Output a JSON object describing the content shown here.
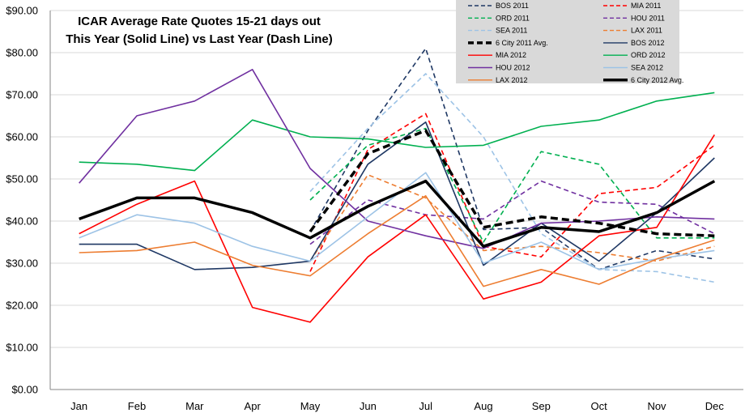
{
  "chart_data": {
    "type": "line",
    "title": "ICAR Average Rate  Quotes 15-21 days out",
    "subtitle": "This Year (Solid Line) vs Last Year (Dash Line)",
    "xlabel": "",
    "ylabel": "",
    "categories": [
      "Jan",
      "Feb",
      "Mar",
      "Apr",
      "May",
      "Jun",
      "Jul",
      "Aug",
      "Sep",
      "Oct",
      "Nov",
      "Dec"
    ],
    "ylim": [
      0,
      90
    ],
    "yticks": [
      "$0.00",
      "$10.00",
      "$20.00",
      "$30.00",
      "$40.00",
      "$50.00",
      "$60.00",
      "$70.00",
      "$80.00",
      "$90.00"
    ],
    "grid": true,
    "legend_position": "top-right",
    "series": [
      {
        "name": "BOS 2011",
        "color": "#1f3864",
        "dash": true,
        "bold": false,
        "values": [
          null,
          null,
          null,
          null,
          37.5,
          61.5,
          81,
          38,
          38.5,
          28.5,
          33,
          31
        ]
      },
      {
        "name": "MIA 2011",
        "color": "#ff0000",
        "dash": true,
        "bold": false,
        "values": [
          null,
          null,
          null,
          null,
          28,
          57,
          65.5,
          34,
          31.5,
          46.5,
          48,
          58
        ]
      },
      {
        "name": "ORD 2011",
        "color": "#00b050",
        "dash": true,
        "bold": false,
        "values": [
          null,
          null,
          null,
          null,
          45,
          58,
          62,
          35,
          56.5,
          53.5,
          36,
          36
        ]
      },
      {
        "name": "HOU 2011",
        "color": "#7030a0",
        "dash": true,
        "bold": false,
        "values": [
          null,
          null,
          null,
          null,
          34.5,
          45,
          41.5,
          40.5,
          49.5,
          44.5,
          44,
          37
        ]
      },
      {
        "name": "SEA 2011",
        "color": "#9dc3e6",
        "dash": true,
        "bold": false,
        "values": [
          null,
          null,
          null,
          null,
          47,
          62,
          75,
          60,
          37,
          28.5,
          28,
          25.5
        ]
      },
      {
        "name": "LAX 2011",
        "color": "#ed7d31",
        "dash": true,
        "bold": false,
        "values": [
          null,
          null,
          null,
          null,
          30.5,
          51,
          45.5,
          33,
          34,
          32.5,
          30.5,
          34
        ]
      },
      {
        "name": "6 City 2011 Avg.",
        "color": "#000000",
        "dash": true,
        "bold": true,
        "values": [
          null,
          null,
          null,
          null,
          37.5,
          56,
          61.5,
          38.5,
          41,
          39.5,
          37,
          36.5
        ]
      },
      {
        "name": "BOS 2012",
        "color": "#1f3864",
        "dash": false,
        "bold": false,
        "values": [
          34.5,
          34.5,
          28.5,
          29,
          30.5,
          53.5,
          63.5,
          29.5,
          39.5,
          30.5,
          42,
          55
        ]
      },
      {
        "name": "MIA 2012",
        "color": "#ff0000",
        "dash": false,
        "bold": false,
        "values": [
          37,
          44,
          49.5,
          19.5,
          16,
          31.5,
          41.5,
          21.5,
          25.5,
          36.5,
          38.5,
          60.5
        ]
      },
      {
        "name": "ORD 2012",
        "color": "#00b050",
        "dash": false,
        "bold": false,
        "values": [
          54,
          53.5,
          52,
          64,
          60,
          59.5,
          57.5,
          58,
          62.5,
          64,
          68.5,
          70.5
        ]
      },
      {
        "name": "HOU 2012",
        "color": "#7030a0",
        "dash": false,
        "bold": false,
        "values": [
          49,
          65,
          68.5,
          76,
          52.5,
          40,
          36.5,
          33.5,
          39.5,
          40,
          41,
          40.5
        ]
      },
      {
        "name": "SEA 2012",
        "color": "#9dc3e6",
        "dash": false,
        "bold": false,
        "values": [
          36,
          41.5,
          39.5,
          34,
          30.5,
          41,
          51.5,
          30,
          35,
          28.5,
          31,
          33
        ]
      },
      {
        "name": "LAX 2012",
        "color": "#ed7d31",
        "dash": false,
        "bold": false,
        "values": [
          32.5,
          33,
          35,
          29.5,
          27,
          37,
          46,
          24.5,
          28.5,
          25,
          31,
          35.5
        ]
      },
      {
        "name": "6 City 2012 Avg.",
        "color": "#000000",
        "dash": false,
        "bold": true,
        "values": [
          40.5,
          45.5,
          45.5,
          42,
          36,
          43.5,
          49.5,
          34,
          38.5,
          37.5,
          42,
          49.5
        ]
      }
    ]
  }
}
